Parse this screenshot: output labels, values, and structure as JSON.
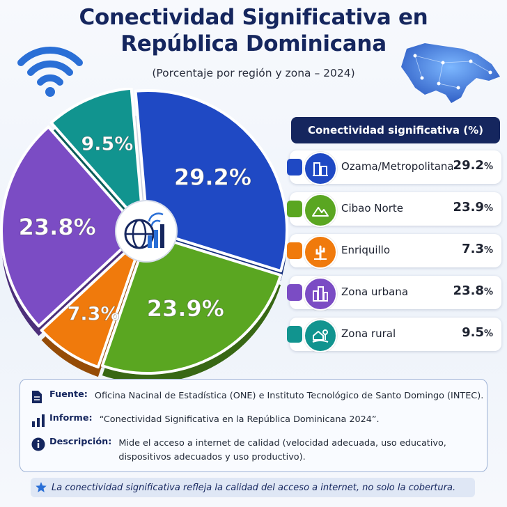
{
  "title_line1": "Conectividad Significativa en",
  "title_line2": "República Dominicana",
  "subtitle": "(Porcentaje por región y zona – 2024)",
  "legend_title": "Conectividad significativa (%)",
  "chart_data": {
    "type": "pie",
    "title": "Conectividad Significativa en República Dominicana",
    "subtitle": "(Porcentaje por región y zona – 2024)",
    "slices": [
      {
        "label": "Ozama/Metropolitana",
        "value": 29.2,
        "display": "29.2%",
        "color": "#1f49c4"
      },
      {
        "label": "Cibao Norte",
        "value": 23.9,
        "display": "23.9%",
        "color": "#5aa621"
      },
      {
        "label": "Enriquillo",
        "value": 7.3,
        "display": "7.3%",
        "color": "#f07a0c"
      },
      {
        "label": "Zona urbana",
        "value": 23.8,
        "display": "23.8%",
        "color": "#7b4cc4"
      },
      {
        "label": "Zona rural",
        "value": 9.5,
        "display": "9.5%",
        "color": "#11948f"
      }
    ]
  },
  "legend": [
    {
      "label": "Ozama/Metropolitana",
      "value": "29.2",
      "unit": "%",
      "color": "#1f49c4",
      "icon": "buildings-icon"
    },
    {
      "label": "Cibao Norte",
      "value": "23.9",
      "unit": "%",
      "color": "#5aa621",
      "icon": "mountains-icon"
    },
    {
      "label": "Enriquillo",
      "value": "7.3",
      "unit": "%",
      "color": "#f07a0c",
      "icon": "cactus-icon"
    },
    {
      "label": "Zona urbana",
      "value": "23.8",
      "unit": "%",
      "color": "#7b4cc4",
      "icon": "city-icon"
    },
    {
      "label": "Zona rural",
      "value": "9.5",
      "unit": "%",
      "color": "#11948f",
      "icon": "farm-icon"
    }
  ],
  "info": {
    "source_key": "Fuente:",
    "source_val": "Oficina Nacinal de Estadística (ONE) e Instituto Tecnológico de Santo Domingo (INTEC).",
    "report_key": "Informe:",
    "report_val": "“Conectividad Significativa en la República Dominicana 2024”.",
    "desc_key": "Descripción:",
    "desc_val1": "Mide el acceso a internet de calidad (velocidad adecuada, uso educativo,",
    "desc_val2": "dispositivos adecuados y uso productivo)."
  },
  "footer_note": "La conectividad significativa refleja la calidad del acceso a internet, no solo la cobertura.",
  "colors": {
    "navy": "#15265e",
    "accent_blue": "#2a6fd6"
  }
}
